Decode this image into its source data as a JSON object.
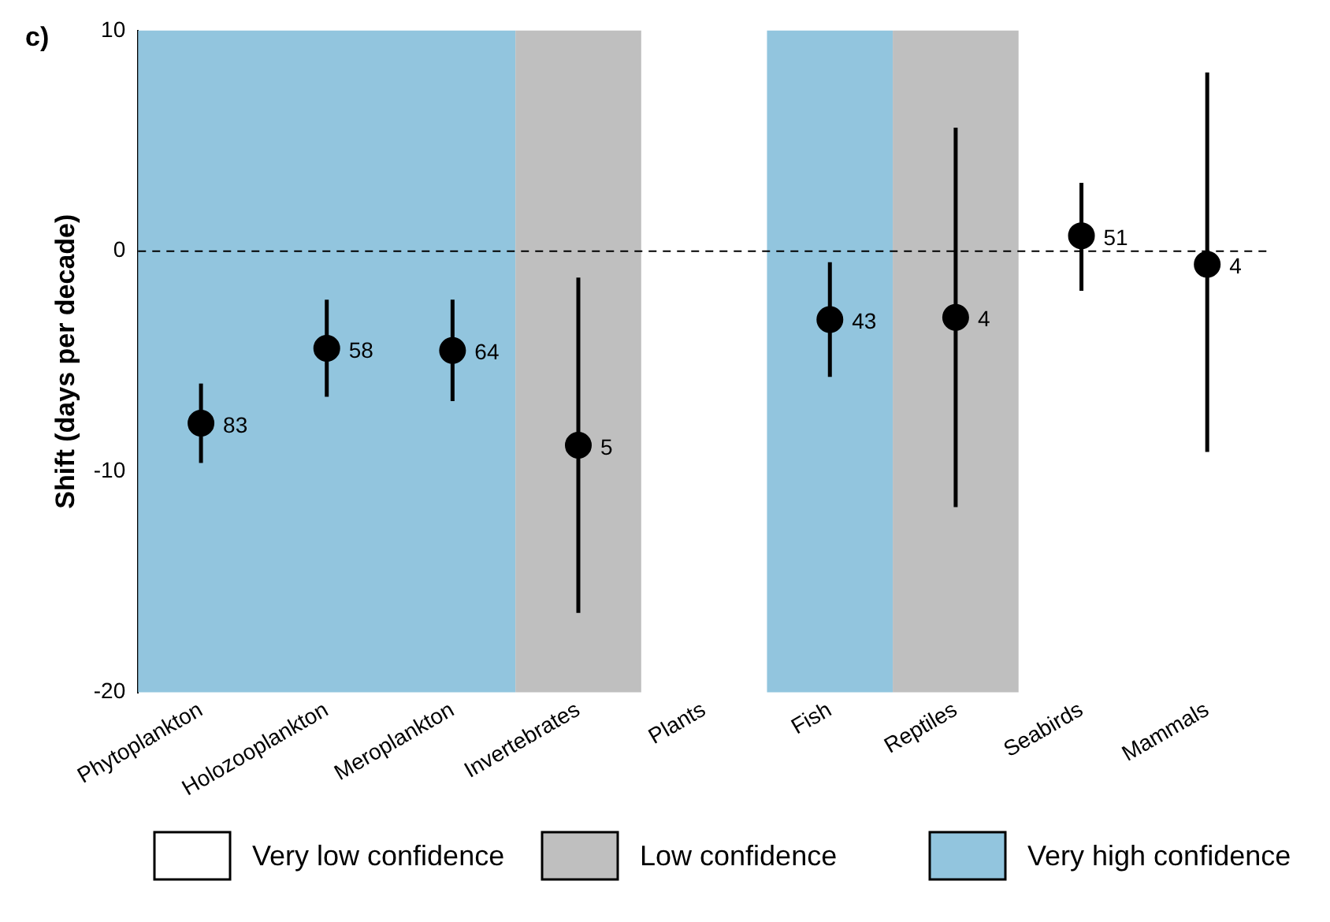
{
  "chart_data": {
    "type": "scatter",
    "ylabel": "Shift (days per decade)",
    "annotations": [
      "c)",
      "Very low confidence",
      {
        "text": "83",
        "x": "Phytoplankton",
        "y": -7.8
      },
      {
        "text": "58",
        "x": "Holozooplankton",
        "y": -4.4
      },
      {
        "text": "64",
        "x": "Meroplankton",
        "y": -4.5
      },
      {
        "text": "5",
        "x": "Invertebrates",
        "y": -8.8
      },
      {
        "text": "43",
        "x": "Fish",
        "y": -3.1
      },
      {
        "text": "4",
        "x": "Reptiles",
        "y": -3.0
      },
      {
        "text": "51",
        "x": "Seabirds",
        "y": 0.7
      },
      {
        "text": "4",
        "x": "Mammals",
        "y": -0.6
      }
    ],
    "categories": [
      "Phytoplankton",
      "Holozooplankton",
      "Meroplankton",
      "Invertebrates",
      "Plants",
      "Fish",
      "Reptiles",
      "Seabirds",
      "Mammals"
    ],
    "series": [
      {
        "color": "#000000",
        "values": [
          -7.8,
          -4.4,
          -4.5,
          -8.8,
          null,
          -3.1,
          -3.0,
          0.7,
          -0.6
        ],
        "errors": [
          [
            -9.6,
            -6.0
          ],
          [
            -6.6,
            -2.2
          ],
          [
            -6.8,
            -2.2
          ],
          [
            -16.4,
            -1.2
          ],
          null,
          [
            -5.7,
            -0.5
          ],
          [
            -11.6,
            5.6
          ],
          [
            -1.8,
            3.1
          ],
          [
            -9.1,
            8.1
          ]
        ]
      }
    ],
    "ylim": [
      -20,
      10
    ],
    "yticks": [
      -20,
      -10,
      0,
      10
    ],
    "marker": "circle",
    "legend": "bottom",
    "ref_lines": [
      {
        "axis": "y",
        "value": 0,
        "line_style": "dashed",
        "color": "#000000"
      }
    ],
    "bands": [
      {
        "axis": "x",
        "from": "Phytoplankton",
        "to": "Meroplankton",
        "label": "Very high confidence",
        "color": "#92c5de"
      },
      {
        "axis": "x",
        "from": "Invertebrates",
        "to": "Invertebrates",
        "label": "Low confidence",
        "color": "#bfbfbf"
      },
      {
        "axis": "x",
        "from": "Fish",
        "to": "Fish",
        "color": "#92c5de"
      },
      {
        "axis": "x",
        "from": "Reptiles",
        "to": "Reptiles",
        "color": "#bfbfbf"
      }
    ]
  }
}
